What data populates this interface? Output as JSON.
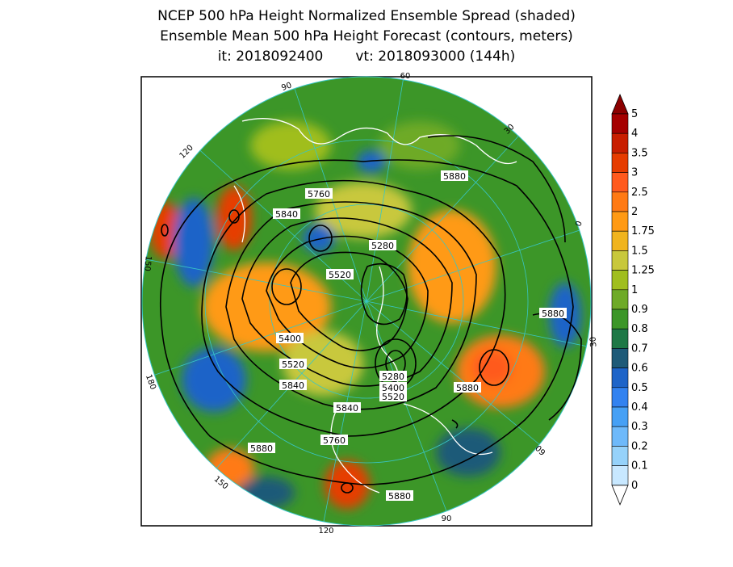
{
  "title_lines": [
    "NCEP 500 hPa Height Normalized Ensemble Spread (shaded)",
    "Ensemble Mean 500 hPa Height Forecast (contours, meters)"
  ],
  "init_time": "it: 2018092400",
  "valid_time": "vt: 2018093000 (144h)",
  "longitude_labels": [
    "60",
    "30",
    "0",
    "30",
    "60",
    "90",
    "120",
    "150",
    "180",
    "150",
    "120",
    "90"
  ],
  "contour_labels": [
    "5760",
    "5840",
    "5880",
    "5280",
    "5520",
    "5400",
    "5520",
    "5840",
    "5880",
    "5280",
    "5400",
    "5520",
    "5880",
    "5840",
    "5760",
    "5880",
    "5880"
  ],
  "colorbar": {
    "labels": [
      "5",
      "4",
      "3.5",
      "3",
      "2.5",
      "2",
      "1.75",
      "1.5",
      "1.25",
      "1",
      "0.9",
      "0.8",
      "0.7",
      "0.6",
      "0.5",
      "0.4",
      "0.3",
      "0.2",
      "0.1",
      "0"
    ],
    "colors": [
      "#a50000",
      "#c81e00",
      "#e63c00",
      "#ff5a1e",
      "#ff7a14",
      "#ff9a14",
      "#f0b41e",
      "#c8c83c",
      "#a0be1e",
      "#6eaa28",
      "#3c9628",
      "#1e7846",
      "#1e5a78",
      "#1e64c8",
      "#3282f0",
      "#46a0f5",
      "#6eb9fa",
      "#96d2fa",
      "#c8e8ff"
    ],
    "top_arrow_color": "#8c0000",
    "bottom_arrow_color": "#ffffff"
  }
}
